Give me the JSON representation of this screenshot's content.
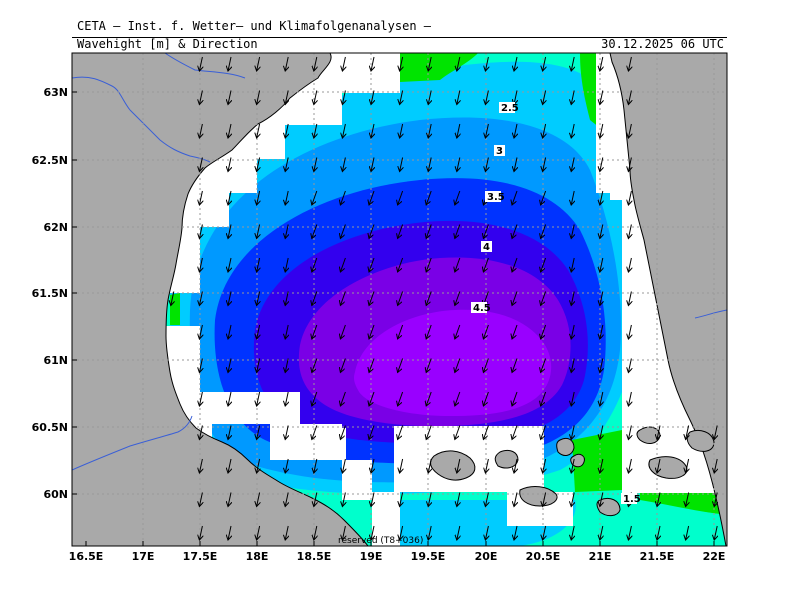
{
  "header": {
    "title": "CETA — Inst. f. Wetter— und Klimafolgenanalysen —",
    "variable": "Wavehight [m] & Direction",
    "datetime": "30.12.2025 06 UTC"
  },
  "map": {
    "region": "Bothnian Sea",
    "lon_labels": [
      "16.5E",
      "17E",
      "17.5E",
      "18E",
      "18.5E",
      "19E",
      "19.5E",
      "20E",
      "20.5E",
      "21E",
      "21.5E",
      "22E"
    ],
    "lat_labels": [
      "60N",
      "60.5N",
      "61N",
      "61.5N",
      "62N",
      "62.5N",
      "63N"
    ],
    "lon_range": [
      16.5,
      22.0
    ],
    "lat_range": [
      59.75,
      63.3
    ],
    "land_color": "#a9a9a9",
    "coastline_color": "#000000",
    "border_color": "#3a5fd6",
    "grid": "dotted",
    "contour_labels": [
      "1.5",
      "2.5",
      "3",
      "3.5",
      "4",
      "4.5"
    ],
    "colors": {
      "1.5": "#00e400",
      "2": "#00ffcc",
      "2.5": "#00ccff",
      "3": "#0099ff",
      "3.5": "#0033ff",
      "4": "#3300ee",
      "4.5": "#7a00e6",
      "5": "#9900ff"
    },
    "arrow_direction": "from north-east (pointing south-west)",
    "copyright": "reserved (T8+036)"
  }
}
